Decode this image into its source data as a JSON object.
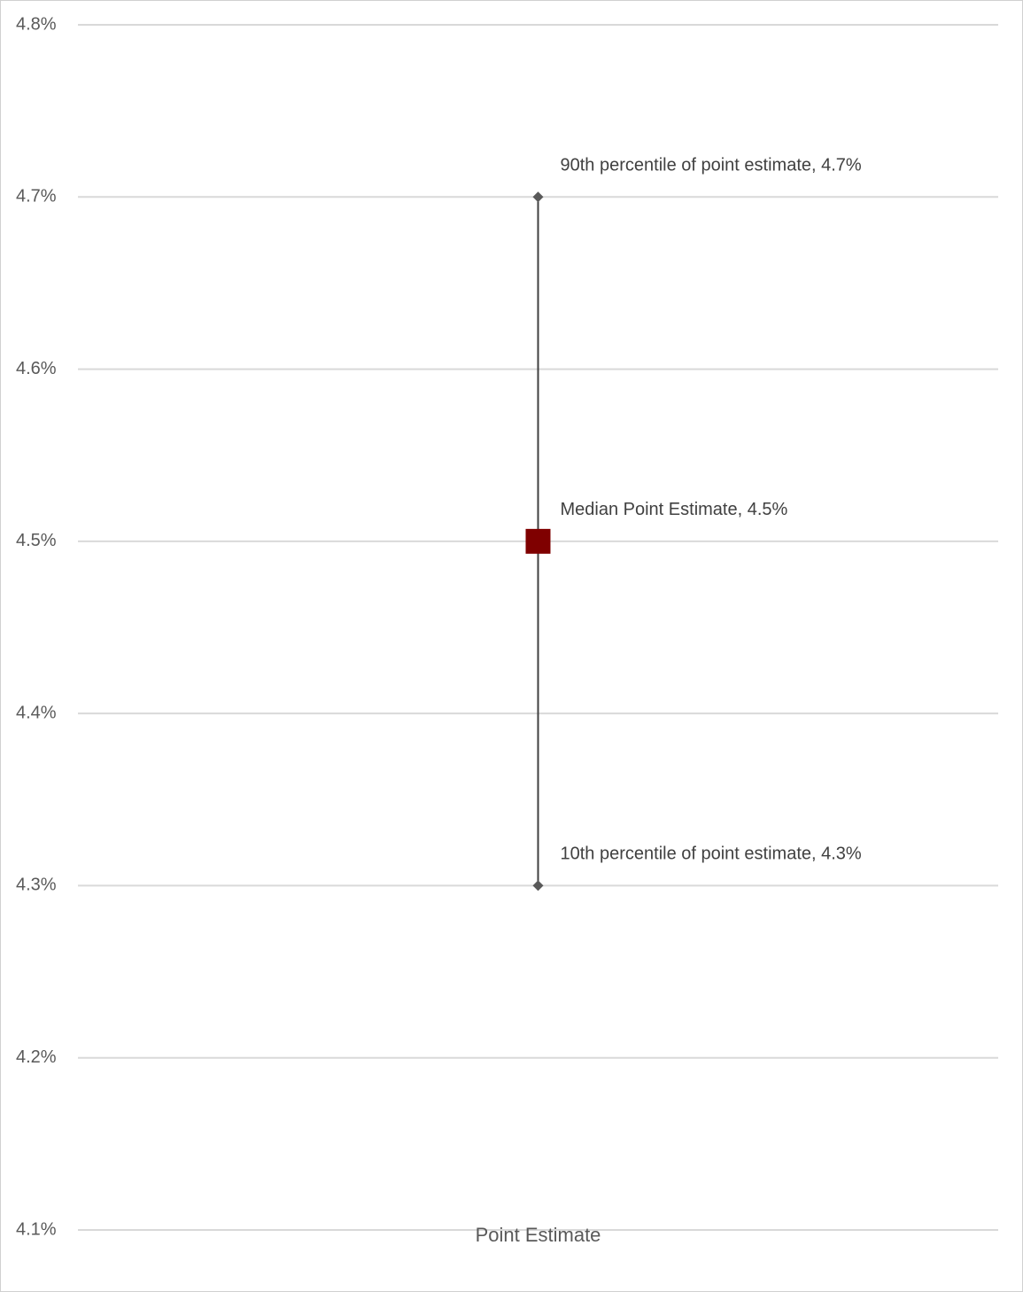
{
  "chart_data": {
    "type": "range",
    "categories": [
      "Point Estimate"
    ],
    "series": [
      {
        "color": "#595959",
        "marker": "diamond",
        "values": [
          4.7
        ],
        "value_labels": [
          "90th percentile of point estimate, 4.7%"
        ]
      },
      {
        "color": "#7f0000",
        "marker": "square",
        "values": [
          4.5
        ],
        "value_labels": [
          "Median Point Estimate, 4.5%"
        ]
      },
      {
        "color": "#595959",
        "marker": "diamond",
        "values": [
          4.3
        ],
        "value_labels": [
          "10th percentile of point estimate, 4.3%"
        ]
      }
    ],
    "high_low_line": true,
    "high_low_color": "#404040",
    "ylim": [
      4.1,
      4.8
    ],
    "yticks": [
      {
        "value": 4.1,
        "label": "4.1%"
      },
      {
        "value": 4.2,
        "label": "4.2%"
      },
      {
        "value": 4.3,
        "label": "4.3%"
      },
      {
        "value": 4.4,
        "label": "4.4%"
      },
      {
        "value": 4.5,
        "label": "4.5%"
      },
      {
        "value": 4.6,
        "label": "4.6%"
      },
      {
        "value": 4.7,
        "label": "4.7%"
      },
      {
        "value": 4.8,
        "label": "4.8%"
      }
    ],
    "grid": true
  }
}
